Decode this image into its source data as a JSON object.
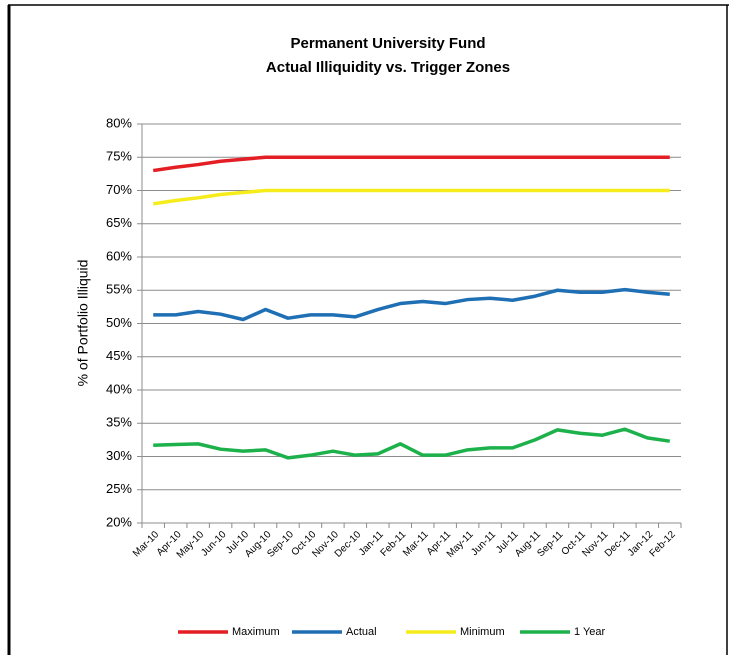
{
  "chart_data": {
    "type": "line",
    "title": "Permanent University Fund",
    "subtitle": "Actual Illiquidity vs. Trigger Zones",
    "y_label": "% of Portfolio Illiquid",
    "categories": [
      "Mar-10",
      "Apr-10",
      "May-10",
      "Jun-10",
      "Jul-10",
      "Aug-10",
      "Sep-10",
      "Oct-10",
      "Nov-10",
      "Dec-10",
      "Jan-11",
      "Feb-11",
      "Mar-11",
      "Apr-11",
      "May-11",
      "Jun-11",
      "Jul-11",
      "Aug-11",
      "Sep-11",
      "Oct-11",
      "Nov-11",
      "Dec-11",
      "Jan-12",
      "Feb-12"
    ],
    "series": [
      {
        "name": "Maximum",
        "color": "#e31e24",
        "values": [
          73,
          73.5,
          73.9,
          74.4,
          74.7,
          75,
          75,
          75,
          75,
          75,
          75,
          75,
          75,
          75,
          75,
          75,
          75,
          75,
          75,
          75,
          75,
          75,
          75,
          75
        ]
      },
      {
        "name": "Actual",
        "color": "#1f6fb4",
        "values": [
          51.3,
          51.3,
          51.8,
          51.4,
          50.6,
          52.1,
          50.8,
          51.3,
          51.3,
          51.0,
          52.1,
          53.0,
          53.3,
          53.0,
          53.6,
          53.8,
          53.5,
          54.1,
          55.0,
          54.7,
          54.7,
          55.1,
          54.7,
          54.4
        ]
      },
      {
        "name": "Minimum",
        "color": "#f5ec1a",
        "values": [
          68,
          68.5,
          68.9,
          69.4,
          69.7,
          70,
          70,
          70,
          70,
          70,
          70,
          70,
          70,
          70,
          70,
          70,
          70,
          70,
          70,
          70,
          70,
          70,
          70,
          70
        ]
      },
      {
        "name": "1 Year",
        "color": "#1db14b",
        "values": [
          31.7,
          31.8,
          31.9,
          31.1,
          30.8,
          31.0,
          29.8,
          30.2,
          30.8,
          30.2,
          30.4,
          31.9,
          30.2,
          30.2,
          31.0,
          31.3,
          31.3,
          32.5,
          34.0,
          33.5,
          33.2,
          34.1,
          32.8,
          32.3
        ]
      }
    ],
    "ylim": [
      20,
      80
    ],
    "yticks": [
      {
        "value": 20,
        "label": "20%"
      },
      {
        "value": 25,
        "label": "25%"
      },
      {
        "value": 30,
        "label": "30%"
      },
      {
        "value": 35,
        "label": "35%"
      },
      {
        "value": 40,
        "label": "40%"
      },
      {
        "value": 45,
        "label": "45%"
      },
      {
        "value": 50,
        "label": "50%"
      },
      {
        "value": 55,
        "label": "55%"
      },
      {
        "value": 60,
        "label": "60%"
      },
      {
        "value": 65,
        "label": "65%"
      },
      {
        "value": 70,
        "label": "70%"
      },
      {
        "value": 75,
        "label": "75%"
      },
      {
        "value": 80,
        "label": "80%"
      }
    ],
    "grid": true,
    "legend": "bottom"
  }
}
